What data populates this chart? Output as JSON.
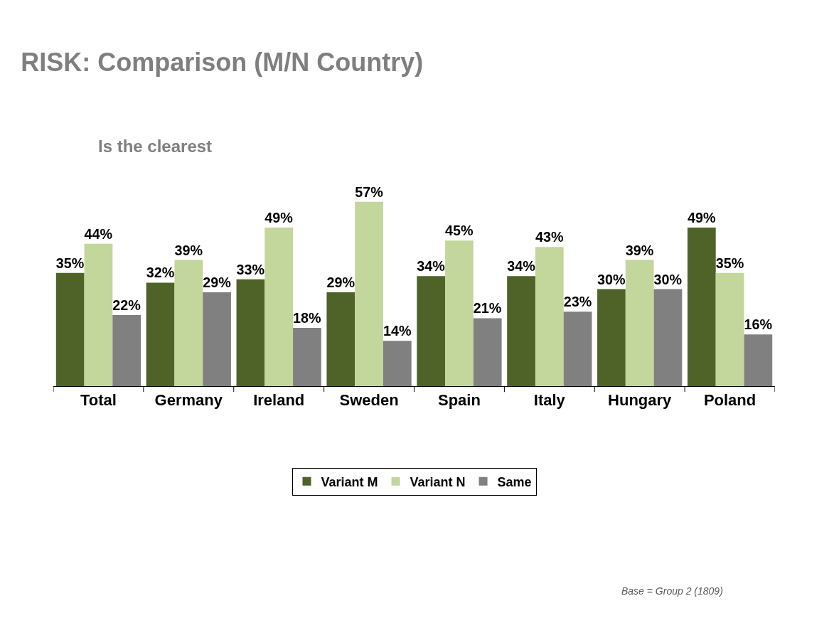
{
  "chart_data": {
    "type": "bar",
    "title": "RISK: Comparison (M/N Country)",
    "subtitle": "Is the clearest",
    "categories": [
      "Total",
      "Germany",
      "Ireland",
      "Sweden",
      "Spain",
      "Italy",
      "Hungary",
      "Poland"
    ],
    "series": [
      {
        "name": "Variant M",
        "color": "#4f6228",
        "values": [
          35,
          32,
          33,
          29,
          34,
          34,
          30,
          49
        ],
        "value_labels": [
          "35%",
          "32%",
          "33%",
          "29%",
          "34%",
          "34%",
          "30%",
          "49%"
        ]
      },
      {
        "name": "Variant N",
        "color": "#c3d69b",
        "values": [
          44,
          39,
          49,
          57,
          45,
          43,
          39,
          35
        ],
        "value_labels": [
          "44%",
          "39%",
          "49%",
          "57%",
          "45%",
          "43%",
          "39%",
          "35%"
        ]
      },
      {
        "name": "Same",
        "color": "#808080",
        "values": [
          22,
          29,
          18,
          14,
          21,
          23,
          30,
          16
        ],
        "value_labels": [
          "22%",
          "29%",
          "18%",
          "14%",
          "21%",
          "23%",
          "30%",
          "16%"
        ]
      }
    ],
    "annotations": [
      "Base = Group 2 (1809)"
    ],
    "tick_labels": "x",
    "legend": "bottom"
  }
}
